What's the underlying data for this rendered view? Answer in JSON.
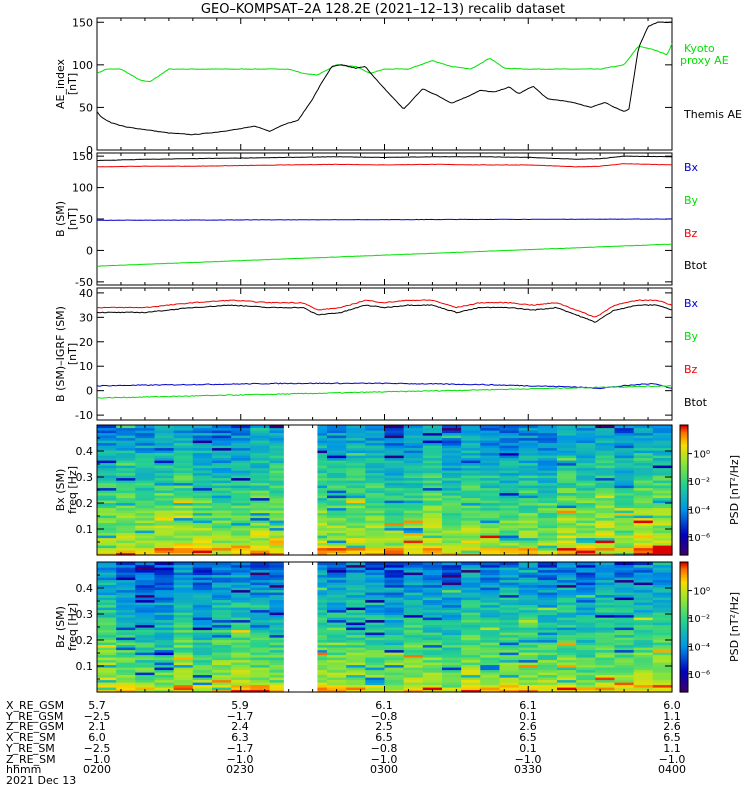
{
  "title": "GEO–KOMPSAT–2A 128.2E (2021–12–13) recalib dataset",
  "colors": {
    "black": "#000000",
    "green": "#00e000",
    "red": "#ee0000",
    "blue": "#0000cc"
  },
  "chart_data": [
    {
      "type": "line",
      "ylabel": "AE_index [nT]",
      "ylim": [
        0,
        155
      ],
      "yticks": [
        0,
        50,
        100,
        150
      ],
      "series": [
        {
          "name": "Kyoto proxy AE",
          "color": "#00e000",
          "x": [
            0,
            0.2,
            0.5,
            0.9,
            1.1,
            1.5,
            2.0,
            3.0,
            4.0,
            4.3,
            4.6,
            5.0,
            5.4,
            5.7,
            6.0,
            6.5,
            7.0,
            7.4,
            7.8,
            8.2,
            8.5,
            9.0,
            9.8,
            10.5,
            11.0,
            11.3,
            11.6,
            11.9,
            12.0
          ],
          "y": [
            90,
            95,
            95,
            82,
            80,
            95,
            95,
            95,
            95,
            90,
            88,
            100,
            98,
            90,
            95,
            95,
            105,
            98,
            95,
            108,
            96,
            95,
            95,
            95,
            100,
            122,
            118,
            112,
            125
          ]
        },
        {
          "name": "Themis AE",
          "color": "#000000",
          "x": [
            0,
            0.1,
            0.3,
            0.6,
            1.0,
            1.5,
            2.0,
            2.5,
            3.0,
            3.3,
            3.6,
            3.9,
            4.2,
            4.5,
            4.7,
            4.9,
            5.1,
            5.4,
            5.6,
            5.9,
            6.2,
            6.4,
            6.6,
            6.8,
            7.1,
            7.4,
            7.7,
            8.0,
            8.3,
            8.6,
            8.8,
            9.1,
            9.4,
            9.7,
            10.0,
            10.3,
            10.6,
            10.8,
            11.0,
            11.1,
            11.3,
            11.5,
            11.7,
            12.0
          ],
          "y": [
            45,
            38,
            32,
            27,
            24,
            20,
            18,
            21,
            25,
            28,
            22,
            30,
            35,
            60,
            80,
            98,
            100,
            96,
            98,
            78,
            60,
            48,
            60,
            72,
            64,
            55,
            62,
            70,
            68,
            74,
            66,
            75,
            60,
            58,
            55,
            50,
            56,
            50,
            45,
            48,
            120,
            145,
            150,
            150
          ]
        }
      ]
    },
    {
      "type": "line",
      "ylabel": "B (SM) [nT]",
      "ylim": [
        -55,
        155
      ],
      "yticks": [
        -50,
        0,
        50,
        100,
        150
      ],
      "series": [
        {
          "name": "Bx",
          "color": "#0000cc",
          "x": [
            0,
            12
          ],
          "y": [
            48,
            50
          ]
        },
        {
          "name": "By",
          "color": "#00e000",
          "x": [
            0,
            12
          ],
          "y": [
            -25,
            10
          ]
        },
        {
          "name": "Bz",
          "color": "#ee0000",
          "x": [
            0,
            1,
            2,
            3,
            4,
            5,
            6,
            7,
            8,
            9,
            10,
            10.5,
            11,
            12
          ],
          "y": [
            133,
            134,
            134,
            135,
            136,
            137,
            136,
            137,
            136,
            136,
            133,
            134,
            138,
            136
          ]
        },
        {
          "name": "Btot",
          "color": "#000000",
          "x": [
            0,
            1,
            2,
            3,
            4,
            5,
            6,
            7,
            8,
            9,
            10,
            10.5,
            11,
            12
          ],
          "y": [
            143,
            145,
            146,
            147,
            148,
            149,
            148,
            149,
            149,
            148,
            145,
            146,
            150,
            149
          ]
        }
      ]
    },
    {
      "type": "line",
      "ylabel": "B (SM)–IGRF (SM) [nT]",
      "ylim": [
        -12,
        42
      ],
      "yticks": [
        -10,
        0,
        10,
        20,
        30,
        40
      ],
      "series": [
        {
          "name": "Bx",
          "color": "#0000cc",
          "x": [
            0,
            2,
            4,
            6,
            8,
            9,
            10,
            10.5,
            11,
            11.6,
            12
          ],
          "y": [
            2,
            2.5,
            3,
            3,
            2.5,
            2,
            1.5,
            1,
            2,
            3,
            1
          ]
        },
        {
          "name": "By",
          "color": "#00e000",
          "x": [
            0,
            12
          ],
          "y": [
            -3,
            2
          ]
        },
        {
          "name": "Bz",
          "color": "#ee0000",
          "x": [
            0,
            1,
            2,
            2.8,
            3.6,
            4.3,
            4.6,
            5.1,
            5.6,
            6.0,
            6.5,
            7.0,
            7.5,
            8.0,
            8.6,
            9.1,
            9.6,
            10.0,
            10.4,
            10.8,
            11.3,
            11.7,
            12.0
          ],
          "y": [
            34,
            34,
            36,
            37,
            36,
            36,
            33,
            34,
            37,
            36,
            37,
            37,
            34,
            36,
            36,
            35,
            36,
            33,
            30,
            35,
            37,
            37,
            35
          ]
        },
        {
          "name": "Btot",
          "color": "#000000",
          "x": [
            0,
            1,
            2,
            2.8,
            3.6,
            4.3,
            4.6,
            5.1,
            5.6,
            6.0,
            6.5,
            7.0,
            7.5,
            8.0,
            8.6,
            9.1,
            9.6,
            10.0,
            10.4,
            10.8,
            11.3,
            11.7,
            12.0
          ],
          "y": [
            32,
            32,
            34,
            35,
            34,
            34,
            31,
            32,
            35,
            34,
            35,
            35,
            32,
            34,
            34,
            33,
            34,
            31,
            28,
            33,
            35,
            35,
            33
          ]
        }
      ]
    },
    {
      "type": "heatmap",
      "ylabel": "Bx (SM) freq [Hz]",
      "yticks": [
        0.1,
        0.2,
        0.3,
        0.4
      ],
      "ylim": [
        0,
        0.5
      ],
      "data_gap": [
        3.9,
        4.6
      ],
      "colorbar": {
        "label": "PSD [nT²/Hz]",
        "ticks": [
          "10⁰",
          "10⁻²",
          "10⁻⁴",
          "10⁻⁶"
        ]
      }
    },
    {
      "type": "heatmap",
      "ylabel": "Bz (SM) freq [Hz]",
      "yticks": [
        0.1,
        0.2,
        0.3,
        0.4
      ],
      "ylim": [
        0,
        0.5
      ],
      "data_gap": [
        3.9,
        4.6
      ],
      "colorbar": {
        "label": "PSD [nT²/Hz]",
        "ticks": [
          "10⁰",
          "10⁻²",
          "10⁻⁴",
          "10⁻⁶"
        ]
      }
    }
  ],
  "ephemeris": {
    "labels": [
      "X_RE_GSM",
      "Y_RE_GSM",
      "Z_RE_GSM",
      "X_RE_SM",
      "Y_RE_SM",
      "Z_RE_SM",
      "hhmm",
      "2021 Dec 13"
    ],
    "columns": [
      [
        "5.7",
        "−2.5",
        "2.1",
        "6.0",
        "−2.5",
        "−1.0",
        "0200"
      ],
      [
        "5.9",
        "−1.7",
        "2.4",
        "6.3",
        "−1.7",
        "−1.0",
        "0230"
      ],
      [
        "6.1",
        "−0.8",
        "2.5",
        "6.5",
        "−0.8",
        "−1.0",
        "0300"
      ],
      [
        "6.1",
        "0.1",
        "2.6",
        "6.5",
        "0.1",
        "−1.0",
        "0330"
      ],
      [
        "6.0",
        "1.1",
        "2.6",
        "6.5",
        "1.1",
        "−1.0",
        "0400"
      ]
    ]
  }
}
